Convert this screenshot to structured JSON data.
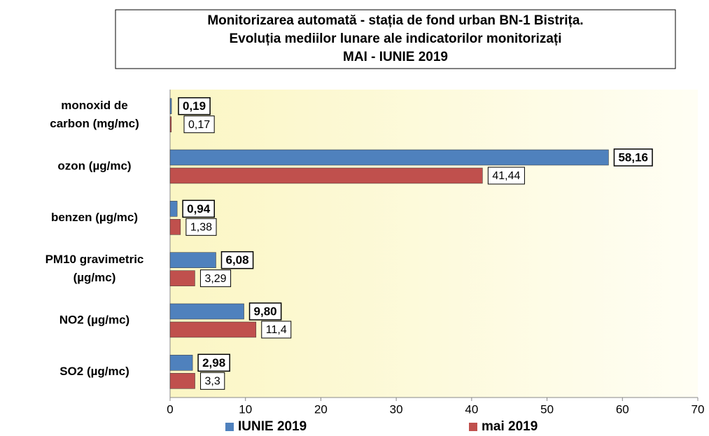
{
  "chart_data": {
    "type": "bar",
    "orientation": "horizontal",
    "title": [
      "Monitorizarea automată  - stația de fond urban BN-1 Bistrița.",
      "Evoluția mediilor lunare ale indicatorilor monitorizați",
      "MAI - IUNIE  2019"
    ],
    "categories": [
      [
        "monoxid de",
        "carbon (mg/mc)"
      ],
      [
        "ozon (µg/mc)"
      ],
      [
        "benzen (µg/mc)"
      ],
      [
        "PM10 gravimetric",
        "(µg/mc)"
      ],
      [
        "NO2 (µg/mc)"
      ],
      [
        "SO2 (µg/mc)"
      ]
    ],
    "series": [
      {
        "name": "IUNIE 2019",
        "color": "#4f81bd",
        "values": [
          0.19,
          58.16,
          0.94,
          6.08,
          9.8,
          2.98
        ],
        "value_labels": [
          "0,19",
          "58,16",
          "0,94",
          "6,08",
          "9,80",
          "2,98"
        ]
      },
      {
        "name": "mai 2019",
        "color": "#c0504d",
        "values": [
          0.17,
          41.44,
          1.38,
          3.29,
          11.4,
          3.3
        ],
        "value_labels": [
          "0,17",
          "41,44",
          "1,38",
          "3,29",
          "11,4",
          "3,3"
        ]
      }
    ],
    "xlim": [
      0,
      70
    ],
    "xticks": [
      0,
      10,
      20,
      30,
      40,
      50,
      60,
      70
    ],
    "legend": "bottom"
  }
}
